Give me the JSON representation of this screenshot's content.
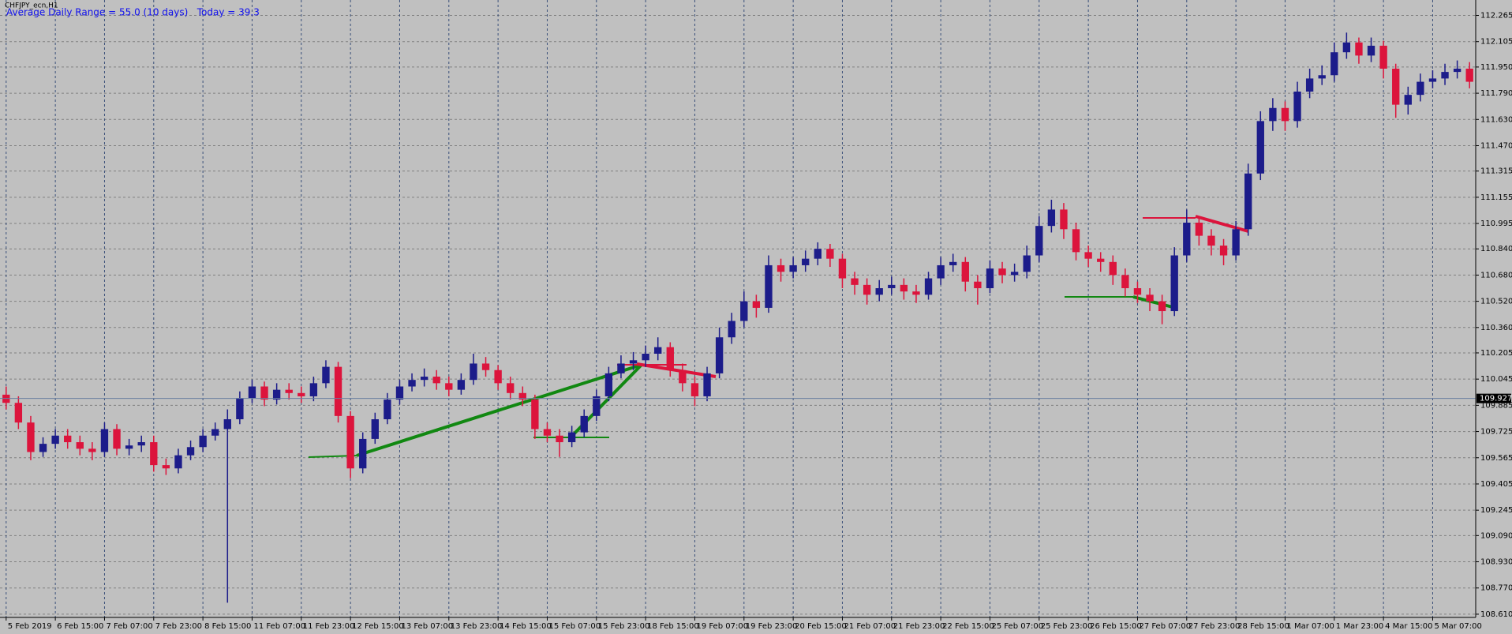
{
  "chart_data": {
    "type": "candlestick",
    "symbol_label": "CHFJPY_ecn,H1",
    "indicator_text": "Average Daily Range = 55.0 (10 days)   Today = 39.3",
    "up_color": "#1c1c8a",
    "down_color": "#dc143c",
    "grid": true,
    "price_line": 109.927,
    "ylim": [
      108.6,
      112.335
    ],
    "yticks": [
      112.265,
      112.105,
      {
        "value": 111.95,
        "label": "111.950"
      },
      {
        "value": 111.79,
        "label": "111.790"
      },
      {
        "value": 111.63,
        "label": "111.630"
      },
      {
        "value": 111.47,
        "label": "111.470"
      },
      111.315,
      111.155,
      110.995,
      {
        "value": 110.84,
        "label": "110.840"
      },
      {
        "value": 110.68,
        "label": "110.680"
      },
      {
        "value": 110.52,
        "label": "110.520"
      },
      {
        "value": 110.36,
        "label": "110.360"
      },
      110.205,
      110.045,
      109.885,
      109.725,
      109.565,
      109.405,
      109.245,
      {
        "value": 109.09,
        "label": "109.090"
      },
      {
        "value": 108.93,
        "label": "108.930"
      },
      {
        "value": 108.77,
        "label": "108.770"
      },
      {
        "value": 108.61,
        "label": "108.610"
      }
    ],
    "categories": [
      "5 Feb 2019",
      null,
      null,
      null,
      "6 Feb 15:00",
      null,
      null,
      null,
      "7 Feb 07:00",
      null,
      null,
      null,
      "7 Feb 23:00",
      null,
      null,
      null,
      "8 Feb 15:00",
      null,
      null,
      null,
      "11 Feb 07:00",
      null,
      null,
      null,
      "11 Feb 23:00",
      null,
      null,
      null,
      "12 Feb 15:00",
      null,
      null,
      null,
      "13 Feb 07:00",
      null,
      null,
      null,
      "13 Feb 23:00",
      null,
      null,
      null,
      "14 Feb 15:00",
      null,
      null,
      null,
      "15 Feb 07:00",
      null,
      null,
      null,
      "15 Feb 23:00",
      null,
      null,
      null,
      "18 Feb 15:00",
      null,
      null,
      null,
      "19 Feb 07:00",
      null,
      null,
      null,
      "19 Feb 23:00",
      null,
      null,
      null,
      "20 Feb 15:00",
      null,
      null,
      null,
      "21 Feb 07:00",
      null,
      null,
      null,
      "21 Feb 23:00",
      null,
      null,
      null,
      "22 Feb 15:00",
      null,
      null,
      null,
      "25 Feb 07:00",
      null,
      null,
      null,
      "25 Feb 23:00",
      null,
      null,
      null,
      "26 Feb 15:00",
      null,
      null,
      null,
      "27 Feb 07:00",
      null,
      null,
      null,
      "27 Feb 23:00",
      null,
      null,
      null,
      "28 Feb 15:00",
      null,
      null,
      null,
      "1 Mar 07:00",
      null,
      null,
      null,
      "1 Mar 23:00",
      null,
      null,
      null,
      "4 Mar 15:00",
      null,
      null,
      null,
      "5 Mar 07:00",
      null,
      null,
      null
    ],
    "open": [
      109.95,
      109.9,
      109.78,
      109.6,
      109.65,
      109.7,
      109.66,
      109.62,
      109.6,
      109.74,
      109.62,
      109.64,
      109.66,
      109.52,
      109.5,
      109.58,
      109.63,
      109.7,
      109.74,
      109.8,
      109.93,
      110.0,
      109.92,
      109.98,
      109.96,
      109.94,
      110.02,
      110.12,
      109.82,
      109.5,
      109.68,
      109.8,
      109.92,
      110.0,
      110.04,
      110.06,
      110.02,
      109.98,
      110.04,
      110.14,
      110.1,
      110.02,
      109.96,
      109.92,
      109.74,
      109.7,
      109.66,
      109.72,
      109.82,
      109.94,
      110.08,
      110.14,
      110.16,
      110.2,
      110.24,
      110.1,
      110.02,
      109.94,
      110.08,
      110.3,
      110.4,
      110.52,
      110.48,
      110.74,
      110.7,
      110.74,
      110.78,
      110.84,
      110.78,
      110.66,
      110.62,
      110.56,
      110.6,
      110.62,
      110.58,
      110.56,
      110.66,
      110.74,
      110.76,
      110.64,
      110.6,
      110.72,
      110.68,
      110.7,
      110.8,
      110.98,
      111.08,
      110.96,
      110.82,
      110.78,
      110.76,
      110.68,
      110.6,
      110.56,
      110.52,
      110.46,
      110.8,
      111.0,
      110.92,
      110.86,
      110.8,
      110.96,
      111.3,
      111.62,
      111.7,
      111.62,
      111.8,
      111.88,
      111.9,
      112.04,
      112.1,
      112.02,
      112.08,
      111.94,
      111.72,
      111.78,
      111.86,
      111.88,
      111.92,
      111.94
    ],
    "high": [
      110.0,
      109.94,
      109.82,
      109.69,
      109.74,
      109.74,
      109.7,
      109.66,
      109.78,
      109.77,
      109.68,
      109.7,
      109.7,
      109.56,
      109.62,
      109.67,
      109.74,
      109.78,
      109.86,
      109.97,
      110.04,
      110.03,
      110.02,
      110.02,
      110.0,
      110.06,
      110.16,
      110.15,
      109.85,
      109.72,
      109.84,
      109.96,
      110.04,
      110.08,
      110.11,
      110.1,
      110.06,
      110.08,
      110.2,
      110.18,
      110.13,
      110.06,
      110.0,
      109.95,
      109.78,
      109.74,
      109.76,
      109.86,
      109.98,
      110.12,
      110.19,
      110.21,
      110.25,
      110.3,
      110.27,
      110.14,
      110.06,
      110.12,
      110.36,
      110.45,
      110.58,
      110.56,
      110.8,
      110.78,
      110.79,
      110.83,
      110.88,
      110.87,
      110.81,
      110.7,
      110.66,
      110.65,
      110.67,
      110.66,
      110.62,
      110.7,
      110.79,
      110.81,
      110.79,
      110.68,
      110.77,
      110.76,
      110.75,
      110.86,
      111.04,
      111.14,
      111.12,
      111.0,
      110.86,
      110.82,
      110.8,
      110.72,
      110.64,
      110.6,
      110.56,
      110.85,
      111.08,
      111.04,
      110.96,
      110.9,
      111.01,
      111.36,
      111.68,
      111.76,
      111.74,
      111.86,
      111.94,
      111.96,
      112.1,
      112.16,
      112.13,
      112.13,
      112.11,
      111.97,
      111.83,
      111.91,
      111.93,
      111.97,
      111.99,
      111.98
    ],
    "low": [
      109.86,
      109.74,
      109.55,
      109.57,
      109.62,
      109.62,
      109.58,
      109.55,
      109.57,
      109.58,
      109.58,
      109.6,
      109.48,
      109.46,
      109.47,
      109.55,
      109.6,
      109.67,
      108.68,
      109.77,
      109.9,
      109.88,
      109.89,
      109.92,
      109.9,
      109.91,
      109.99,
      109.78,
      109.44,
      109.47,
      109.65,
      109.77,
      109.89,
      109.97,
      110.0,
      109.98,
      109.94,
      109.95,
      110.01,
      110.06,
      109.98,
      109.92,
      109.88,
      109.68,
      109.66,
      109.57,
      109.63,
      109.69,
      109.79,
      109.91,
      110.05,
      110.1,
      110.12,
      110.16,
      110.06,
      109.97,
      109.88,
      109.91,
      110.05,
      110.26,
      110.36,
      110.42,
      110.45,
      110.64,
      110.66,
      110.7,
      110.74,
      110.73,
      110.6,
      110.56,
      110.5,
      110.52,
      110.56,
      110.53,
      110.51,
      110.53,
      110.62,
      110.7,
      110.58,
      110.5,
      110.57,
      110.63,
      110.64,
      110.66,
      110.76,
      110.94,
      110.9,
      110.77,
      110.73,
      110.7,
      110.62,
      110.55,
      110.51,
      110.46,
      110.38,
      110.43,
      110.76,
      110.86,
      110.8,
      110.74,
      110.77,
      110.92,
      111.26,
      111.56,
      111.56,
      111.58,
      111.76,
      111.84,
      111.86,
      112.0,
      111.97,
      111.98,
      111.88,
      111.64,
      111.66,
      111.74,
      111.82,
      111.84,
      111.88,
      111.82
    ],
    "close": [
      109.9,
      109.78,
      109.6,
      109.65,
      109.7,
      109.66,
      109.62,
      109.6,
      109.74,
      109.62,
      109.64,
      109.66,
      109.52,
      109.5,
      109.58,
      109.63,
      109.7,
      109.74,
      109.8,
      109.93,
      110.0,
      109.92,
      109.98,
      109.96,
      109.94,
      110.02,
      110.12,
      109.82,
      109.5,
      109.68,
      109.8,
      109.92,
      110.0,
      110.04,
      110.06,
      110.02,
      109.98,
      110.04,
      110.14,
      110.1,
      110.02,
      109.96,
      109.92,
      109.74,
      109.7,
      109.66,
      109.72,
      109.82,
      109.94,
      110.08,
      110.14,
      110.16,
      110.2,
      110.24,
      110.1,
      110.02,
      109.94,
      110.08,
      110.3,
      110.4,
      110.52,
      110.48,
      110.74,
      110.7,
      110.74,
      110.78,
      110.84,
      110.78,
      110.66,
      110.62,
      110.56,
      110.6,
      110.62,
      110.58,
      110.56,
      110.66,
      110.74,
      110.76,
      110.64,
      110.6,
      110.72,
      110.68,
      110.7,
      110.8,
      110.98,
      111.08,
      110.96,
      110.82,
      110.78,
      110.76,
      110.68,
      110.6,
      110.56,
      110.52,
      110.46,
      110.8,
      111.0,
      110.92,
      110.86,
      110.8,
      110.96,
      111.3,
      111.62,
      111.7,
      111.62,
      111.8,
      111.88,
      111.9,
      112.04,
      112.1,
      112.02,
      112.08,
      111.94,
      111.72,
      111.78,
      111.86,
      111.88,
      111.92,
      111.94,
      111.86
    ]
  }
}
